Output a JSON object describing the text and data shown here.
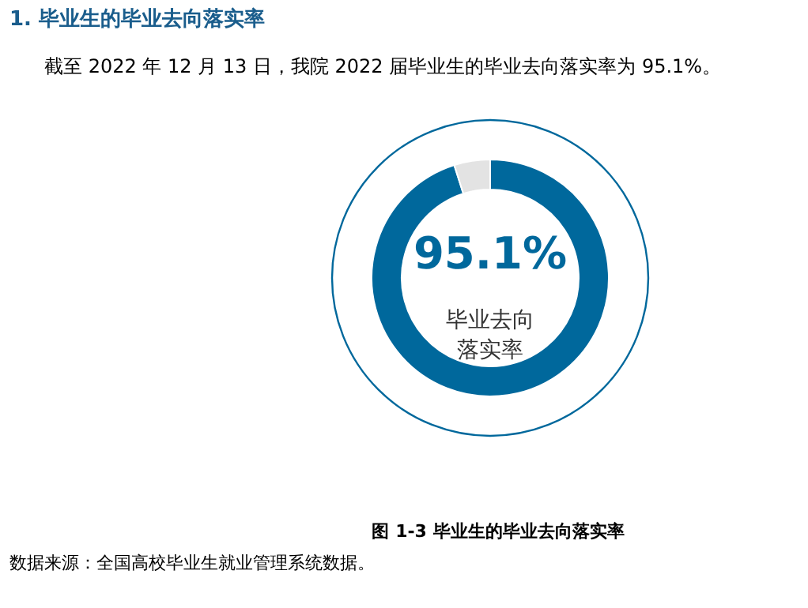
{
  "chart_data": {
    "type": "donut",
    "title": "1.    毕业生的毕业去向落实率",
    "subtitle": "截至 2022 年 12 月 13 日，我院 2022 届毕业生的毕业去向落实率为 95.1%。",
    "categories": [
      null,
      null
    ],
    "values": [
      95.1,
      4.9
    ],
    "colors": [
      "#00689c",
      "#e3e3e3"
    ],
    "value_labels": [
      "95.1%",
      null
    ],
    "annotations": [
      "毕业去向落实率",
      "图 1-3      毕业生的毕业去向落实率",
      "数据来源：全国高校毕业生就业管理系统数据。"
    ]
  }
}
